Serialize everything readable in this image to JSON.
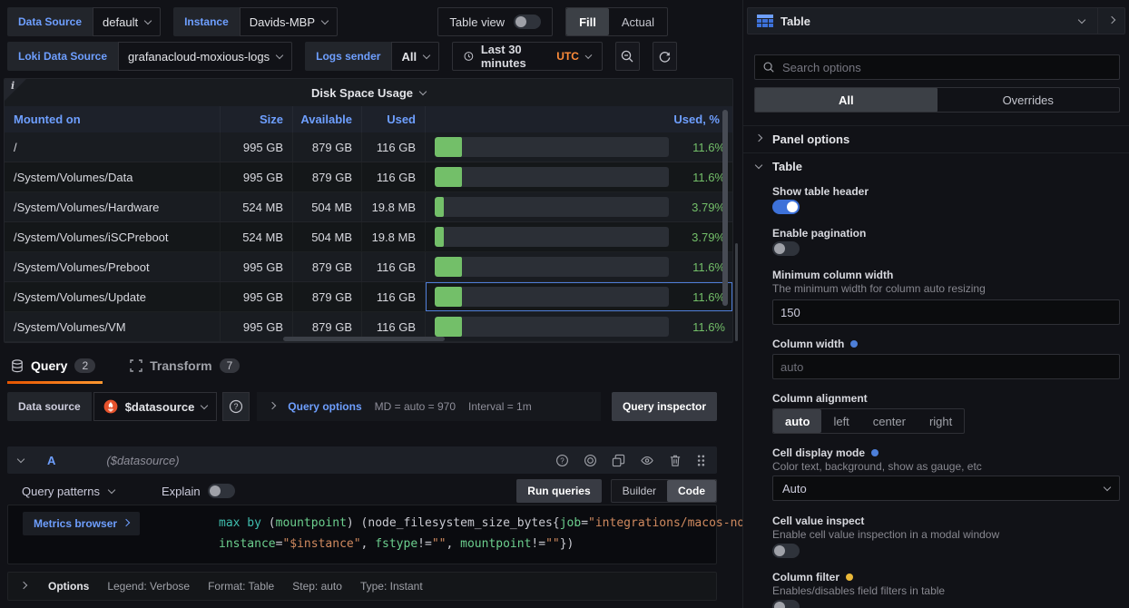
{
  "toolbar": {
    "datasource_label": "Data Source",
    "datasource_value": "default",
    "instance_label": "Instance",
    "instance_value": "Davids-MBP",
    "table_view_label": "Table view",
    "display_modes": [
      "Fill",
      "Actual"
    ],
    "loki_label": "Loki Data Source",
    "loki_value": "grafanacloud-moxious-logs",
    "logs_sender_label": "Logs sender",
    "logs_sender_value": "All",
    "time_range": "Last 30 minutes",
    "timezone": "UTC"
  },
  "panel": {
    "title": "Disk Space Usage",
    "info_glyph": "i",
    "table": {
      "headers": {
        "mounted": "Mounted on",
        "size": "Size",
        "available": "Available",
        "used": "Used",
        "used_pct": "Used, %"
      },
      "rows": [
        {
          "mount": "/",
          "size": "995 GB",
          "available": "879 GB",
          "used": "116 GB",
          "pct": 11.6,
          "pct_label": "11.6%",
          "focused": false
        },
        {
          "mount": "/System/Volumes/Data",
          "size": "995 GB",
          "available": "879 GB",
          "used": "116 GB",
          "pct": 11.6,
          "pct_label": "11.6%",
          "focused": false
        },
        {
          "mount": "/System/Volumes/Hardware",
          "size": "524 MB",
          "available": "504 MB",
          "used": "19.8 MB",
          "pct": 3.79,
          "pct_label": "3.79%",
          "focused": false
        },
        {
          "mount": "/System/Volumes/iSCPreboot",
          "size": "524 MB",
          "available": "504 MB",
          "used": "19.8 MB",
          "pct": 3.79,
          "pct_label": "3.79%",
          "focused": false
        },
        {
          "mount": "/System/Volumes/Preboot",
          "size": "995 GB",
          "available": "879 GB",
          "used": "116 GB",
          "pct": 11.6,
          "pct_label": "11.6%",
          "focused": false
        },
        {
          "mount": "/System/Volumes/Update",
          "size": "995 GB",
          "available": "879 GB",
          "used": "116 GB",
          "pct": 11.6,
          "pct_label": "11.6%",
          "focused": true
        },
        {
          "mount": "/System/Volumes/VM",
          "size": "995 GB",
          "available": "879 GB",
          "used": "116 GB",
          "pct": 11.6,
          "pct_label": "11.6%",
          "focused": false
        }
      ],
      "bar_color": "#73bf69"
    }
  },
  "query": {
    "tabs": {
      "query": {
        "label": "Query",
        "badge": "2"
      },
      "transform": {
        "label": "Transform",
        "badge": "7"
      }
    },
    "datasource_row": {
      "label": "Data source",
      "value": "$datasource",
      "options_label": "Query options",
      "md_text": "MD = auto = 970",
      "interval_text": "Interval = 1m",
      "inspector_label": "Query inspector"
    },
    "ref_row": {
      "ref_id": "A",
      "hint": "($datasource)"
    },
    "patterns_label": "Query patterns",
    "explain_label": "Explain",
    "run_label": "Run queries",
    "editor_modes": [
      "Builder",
      "Code"
    ],
    "editor": {
      "metrics_browser": "Metrics browser",
      "lines": [
        [
          {
            "t": "max by ",
            "c": "kw"
          },
          {
            "t": "(",
            "c": "pl"
          },
          {
            "t": "mountpoint",
            "c": "lb"
          },
          {
            "t": ") (node_filesystem_size_bytes{",
            "c": "pl"
          },
          {
            "t": "job",
            "c": "lb"
          },
          {
            "t": "=",
            "c": "pl"
          },
          {
            "t": "\"integrations/macos-node\"",
            "c": "st"
          },
          {
            "t": ",",
            "c": "pl"
          }
        ],
        [
          {
            "t": "instance",
            "c": "lb"
          },
          {
            "t": "=",
            "c": "pl"
          },
          {
            "t": "\"$instance\"",
            "c": "st"
          },
          {
            "t": ", ",
            "c": "pl"
          },
          {
            "t": "fstype",
            "c": "lb"
          },
          {
            "t": "!=",
            "c": "pl"
          },
          {
            "t": "\"\"",
            "c": "st"
          },
          {
            "t": ", ",
            "c": "pl"
          },
          {
            "t": "mountpoint",
            "c": "lb"
          },
          {
            "t": "!=",
            "c": "pl"
          },
          {
            "t": "\"\"",
            "c": "st"
          },
          {
            "t": "})",
            "c": "pl"
          }
        ]
      ]
    },
    "options_row": {
      "toggle_label": "Options",
      "legend": "Legend: Verbose",
      "format": "Format: Table",
      "step": "Step: auto",
      "type": "Type: Instant"
    }
  },
  "sidebar": {
    "header_title": "Table",
    "search_placeholder": "Search options",
    "tabs": [
      "All",
      "Overrides"
    ],
    "panel_options_label": "Panel options",
    "table_section_label": "Table",
    "show_table_header": {
      "label": "Show table header",
      "on": true
    },
    "enable_pagination": {
      "label": "Enable pagination",
      "on": false
    },
    "min_col_width": {
      "label": "Minimum column width",
      "desc": "The minimum width for column auto resizing",
      "value": "150"
    },
    "column_width": {
      "label": "Column width",
      "value": "auto"
    },
    "column_alignment": {
      "label": "Column alignment",
      "options": [
        "auto",
        "left",
        "center",
        "right"
      ],
      "selected": "auto"
    },
    "cell_display": {
      "label": "Cell display mode",
      "desc": "Color text, background, show as gauge, etc",
      "value": "Auto"
    },
    "cell_inspect": {
      "label": "Cell value inspect",
      "desc": "Enable cell value inspection in a modal window",
      "on": false
    },
    "column_filter": {
      "label": "Column filter",
      "desc": "Enables/disables field filters in table",
      "on": false
    }
  },
  "colors": {
    "accent_blue": "#6e9fff",
    "accent_orange": "#ff780a",
    "green": "#73bf69",
    "toggle_on": "#3d71d9"
  }
}
